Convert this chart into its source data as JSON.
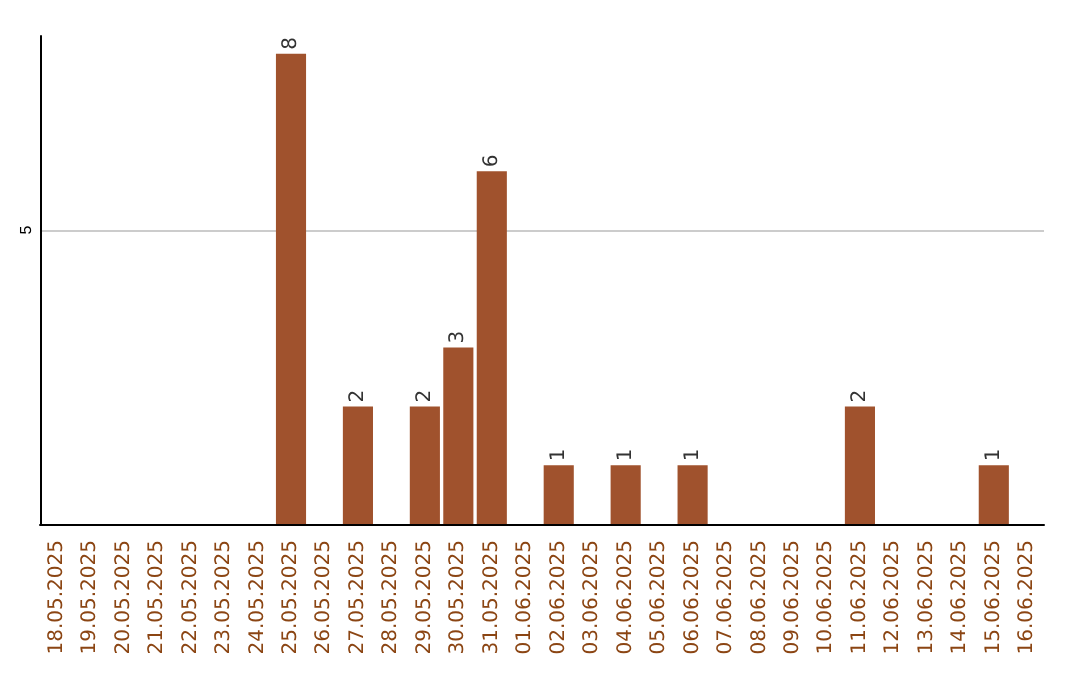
{
  "chart_data": {
    "type": "bar",
    "categories": [
      "18.05.2025",
      "19.05.2025",
      "20.05.2025",
      "21.05.2025",
      "22.05.2025",
      "23.05.2025",
      "24.05.2025",
      "25.05.2025",
      "26.05.2025",
      "27.05.2025",
      "28.05.2025",
      "29.05.2025",
      "30.05.2025",
      "31.05.2025",
      "01.06.2025",
      "02.06.2025",
      "03.06.2025",
      "04.06.2025",
      "05.06.2025",
      "06.06.2025",
      "07.06.2025",
      "08.06.2025",
      "09.06.2025",
      "10.06.2025",
      "11.06.2025",
      "12.06.2025",
      "13.06.2025",
      "14.06.2025",
      "15.06.2025",
      "16.06.2025"
    ],
    "values": [
      0,
      0,
      0,
      0,
      0,
      0,
      0,
      8,
      0,
      2,
      0,
      2,
      3,
      6,
      0,
      1,
      0,
      1,
      0,
      1,
      0,
      0,
      0,
      0,
      2,
      0,
      0,
      0,
      1,
      0
    ],
    "value_labels": [
      null,
      null,
      null,
      null,
      null,
      null,
      null,
      "8",
      null,
      "2",
      null,
      "2",
      "3",
      "6",
      null,
      "1",
      null,
      "1",
      null,
      "1",
      null,
      null,
      null,
      null,
      "2",
      null,
      null,
      null,
      "1",
      null
    ],
    "color": "#a0522d",
    "ylim": [
      0,
      8.3
    ],
    "yticks": [
      5
    ],
    "grid": "y"
  }
}
